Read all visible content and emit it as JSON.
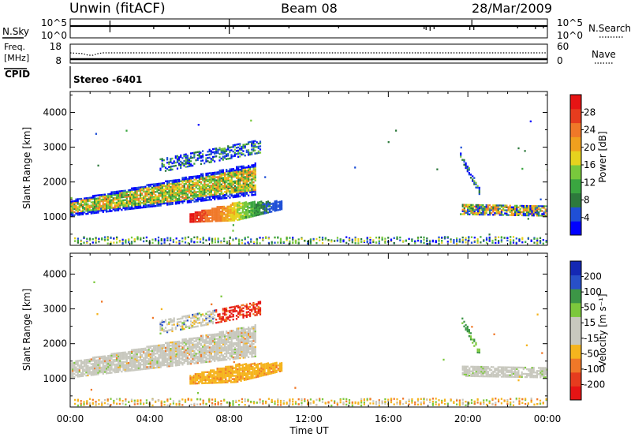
{
  "header": {
    "station": "Unwin (fitACF)",
    "beam": "Beam 08",
    "date": "28/Mar/2009"
  },
  "strip": {
    "nsky_label": "N.Sky",
    "nsearch_label": "N.Search",
    "nsky_tick_top": "10^5",
    "nsky_tick_bottom": "10^0",
    "freq_label_line1": "Freq.",
    "freq_label_line2": "[MHz]",
    "freq_tick_top": "18",
    "freq_tick_bottom": "8",
    "nave_label": "Nave",
    "nave_tick_top": "60",
    "nave_tick_bottom": "0",
    "cpid_label": "CPID",
    "cpid_value": "Stereo -6401"
  },
  "chart_data": [
    {
      "type": "heatmap",
      "panel": "power",
      "xlabel": "Time UT",
      "ylabel": "Slant Range [km]",
      "x_ticks": [
        "00:00",
        "04:00",
        "08:00",
        "12:00",
        "16:00",
        "20:00",
        "00:00"
      ],
      "x_range_hours": [
        0,
        24
      ],
      "y_ticks": [
        1000,
        2000,
        3000,
        4000
      ],
      "ylim": [
        180,
        4600
      ],
      "colorbar": {
        "label": "Power [dB]",
        "ticks": [
          "28",
          "24",
          "20",
          "16",
          "12",
          "8",
          "4"
        ],
        "colors": [
          "#0000ff",
          "#1f4fd6",
          "#2d7a3c",
          "#3aa640",
          "#78c83c",
          "#e6d21e",
          "#f0a01e",
          "#f07828",
          "#e63c1e",
          "#e61414"
        ]
      },
      "regions": [
        {
          "name": "main-echo-band",
          "t": [
            0,
            9.2
          ],
          "range_km": [
            1000,
            2300
          ]
        },
        {
          "name": "upper-echo-band",
          "t": [
            4.5,
            9.5
          ],
          "range_km": [
            2400,
            3300
          ]
        },
        {
          "name": "lower-echo-patch",
          "t": [
            6,
            10.5
          ],
          "range_km": [
            700,
            1400
          ]
        },
        {
          "name": "evening-echo-band",
          "t": [
            19.5,
            24
          ],
          "range_km": [
            900,
            2900
          ]
        }
      ]
    },
    {
      "type": "heatmap",
      "panel": "velocity",
      "xlabel": "Time UT",
      "ylabel": "Slant Range [km]",
      "x_ticks": [
        "00:00",
        "04:00",
        "08:00",
        "12:00",
        "16:00",
        "20:00",
        "00:00"
      ],
      "x_range_hours": [
        0,
        24
      ],
      "y_ticks": [
        1000,
        2000,
        3000,
        4000
      ],
      "ylim": [
        180,
        4600
      ],
      "colorbar": {
        "label": "Velocity [m s⁻¹]",
        "ticks": [
          "200",
          "100",
          "50",
          "15",
          "-15",
          "-50",
          "-100",
          "-200"
        ],
        "colors": [
          "#e61414",
          "#e63c1e",
          "#f07828",
          "#f5b41e",
          "#c8c8be",
          "#c8c8be",
          "#7cc83c",
          "#3c9646",
          "#2850c8",
          "#1428b4"
        ]
      },
      "regions": [
        {
          "name": "main-echo-band",
          "t": [
            0,
            9.2
          ],
          "range_km": [
            1000,
            2300
          ],
          "velocity": "-15 to 15"
        },
        {
          "name": "upper-echo-patch",
          "t": [
            7.3,
            9.6
          ],
          "range_km": [
            2300,
            3300
          ],
          "velocity": "-200 to -100"
        },
        {
          "name": "lower-echo-patch",
          "t": [
            6,
            10.5
          ],
          "range_km": [
            700,
            1400
          ],
          "velocity": "-50 to -15"
        },
        {
          "name": "evening-echo-band",
          "t": [
            19.5,
            24
          ],
          "range_km": [
            900,
            2900
          ],
          "velocity": "-15 to 50"
        }
      ]
    }
  ]
}
